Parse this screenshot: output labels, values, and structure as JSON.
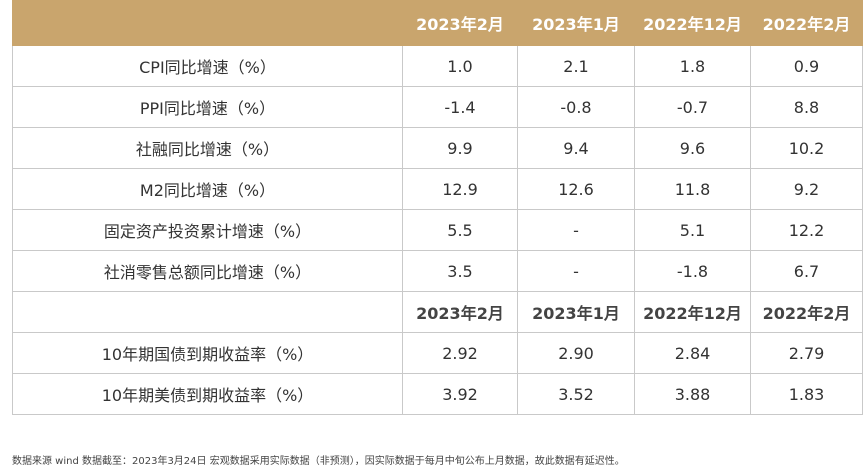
{
  "header": {
    "periods": [
      "2023年2月",
      "2023年1月",
      "2022年12月",
      "2022年2月"
    ]
  },
  "macro_rows": [
    {
      "label": "CPI同比增速（%）",
      "values": [
        "1.0",
        "2.1",
        "1.8",
        "0.9"
      ]
    },
    {
      "label": "PPI同比增速（%）",
      "values": [
        "-1.4",
        "-0.8",
        "-0.7",
        "8.8"
      ]
    },
    {
      "label": "社融同比增速（%）",
      "values": [
        "9.9",
        "9.4",
        "9.6",
        "10.2"
      ]
    },
    {
      "label": "M2同比增速（%）",
      "values": [
        "12.9",
        "12.6",
        "11.8",
        "9.2"
      ]
    },
    {
      "label": "固定资产投资累计增速（%）",
      "values": [
        "5.5",
        "-",
        "5.1",
        "12.2"
      ]
    },
    {
      "label": "社消零售总额同比增速（%）",
      "values": [
        "3.5",
        "-",
        "-1.8",
        "6.7"
      ]
    }
  ],
  "subheader": {
    "periods": [
      "2023年2月",
      "2023年1月",
      "2022年12月",
      "2022年2月"
    ]
  },
  "yield_rows": [
    {
      "label": "10年期国债到期收益率（%）",
      "values": [
        "2.92",
        "2.90",
        "2.84",
        "2.79"
      ]
    },
    {
      "label": "10年期美债到期收益率（%）",
      "values": [
        "3.92",
        "3.52",
        "3.88",
        "1.83"
      ]
    }
  ],
  "footnote": "数据来源 wind   数据截至：2023年3月24日   宏观数据采用实际数据（非预测），因实际数据于每月中旬公布上月数据，故此数据有延迟性。",
  "colors": {
    "header_bg": "#c9a56d",
    "header_text": "#ffffff",
    "border": "#c9c9c9"
  }
}
